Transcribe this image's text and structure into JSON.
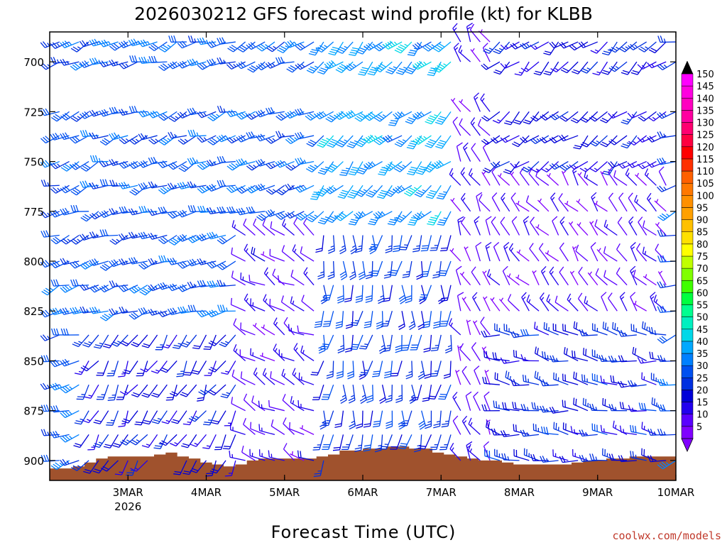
{
  "chart_data": {
    "type": "wind_profile",
    "title": "2026030212 GFS forecast wind profile (kt) for KLBB",
    "xlabel": "Forecast Time (UTC)",
    "ylabel": "",
    "credit": "coolwx.com/models",
    "x_start": "2MAR 12Z",
    "x_end": "10MAR 00Z",
    "x_ticks": [
      {
        "label": "3MAR",
        "sub": "2026",
        "hours": 12
      },
      {
        "label": "4MAR",
        "sub": "",
        "hours": 36
      },
      {
        "label": "5MAR",
        "sub": "",
        "hours": 60
      },
      {
        "label": "6MAR",
        "sub": "",
        "hours": 84
      },
      {
        "label": "7MAR",
        "sub": "",
        "hours": 108
      },
      {
        "label": "8MAR",
        "sub": "",
        "hours": 132
      },
      {
        "label": "9MAR",
        "sub": "",
        "hours": 156
      },
      {
        "label": "10MAR",
        "sub": "",
        "hours": 180
      }
    ],
    "y_ticks": [
      700,
      725,
      750,
      775,
      800,
      825,
      850,
      875,
      900
    ],
    "ylim_hpa": [
      910,
      685
    ],
    "pressure_levels": [
      690,
      700,
      725,
      737,
      750,
      762,
      775,
      787,
      800,
      812,
      825,
      837,
      850,
      862,
      875,
      887,
      900
    ],
    "colorbar": {
      "labels": [
        5,
        10,
        15,
        20,
        25,
        30,
        35,
        40,
        45,
        50,
        55,
        60,
        65,
        70,
        75,
        80,
        85,
        90,
        95,
        100,
        105,
        110,
        115,
        120,
        125,
        130,
        135,
        140,
        145,
        150
      ],
      "colors": [
        "#8000ff",
        "#5a00ff",
        "#2200ee",
        "#0000d8",
        "#0030e0",
        "#0050f0",
        "#0080ff",
        "#00a8ff",
        "#00d8e8",
        "#00f0c0",
        "#00ff90",
        "#00ff40",
        "#40ff00",
        "#80ff00",
        "#c0ff00",
        "#ffff00",
        "#ffe000",
        "#ffc000",
        "#ffa000",
        "#ff9000",
        "#ff7800",
        "#ff6000",
        "#ff3000",
        "#ff0000",
        "#ff0040",
        "#ff0070",
        "#ff00a0",
        "#ff00c0",
        "#ff00e0",
        "#ff00ff"
      ]
    },
    "terrain": {
      "surface_hpa": [
        904,
        904,
        903,
        901,
        899,
        898,
        898,
        898,
        898,
        897,
        896,
        898,
        899,
        901,
        902,
        903,
        902,
        900,
        899,
        899,
        899,
        899,
        899,
        898,
        897,
        895,
        895,
        894,
        894,
        893,
        893,
        894,
        894,
        896,
        897,
        898,
        899,
        900,
        900,
        901,
        902,
        902,
        902,
        902,
        902,
        901,
        900,
        900,
        899,
        899,
        898,
        898,
        898,
        898
      ],
      "color": "#a0522d"
    },
    "wind_regimes": [
      {
        "t0": 0,
        "t1": 48,
        "p0": 685,
        "p1": 830,
        "dir": 250,
        "spd": 30
      },
      {
        "t0": 0,
        "t1": 48,
        "p0": 830,
        "p1": 910,
        "dir": 210,
        "spd": 20
      },
      {
        "t0": 48,
        "t1": 72,
        "p0": 685,
        "p1": 780,
        "dir": 245,
        "spd": 30
      },
      {
        "t0": 48,
        "t1": 72,
        "p0": 780,
        "p1": 910,
        "dir": 300,
        "spd": 12
      },
      {
        "t0": 72,
        "t1": 114,
        "p0": 685,
        "p1": 780,
        "dir": 225,
        "spd": 38
      },
      {
        "t0": 72,
        "t1": 114,
        "p0": 780,
        "p1": 910,
        "dir": 185,
        "spd": 25
      },
      {
        "t0": 114,
        "t1": 126,
        "p0": 685,
        "p1": 910,
        "dir": 330,
        "spd": 10
      },
      {
        "t0": 126,
        "t1": 180,
        "p0": 685,
        "p1": 760,
        "dir": 230,
        "spd": 20
      },
      {
        "t0": 126,
        "t1": 180,
        "p0": 760,
        "p1": 830,
        "dir": 320,
        "spd": 10
      },
      {
        "t0": 126,
        "t1": 180,
        "p0": 830,
        "p1": 910,
        "dir": 280,
        "spd": 22
      }
    ]
  }
}
